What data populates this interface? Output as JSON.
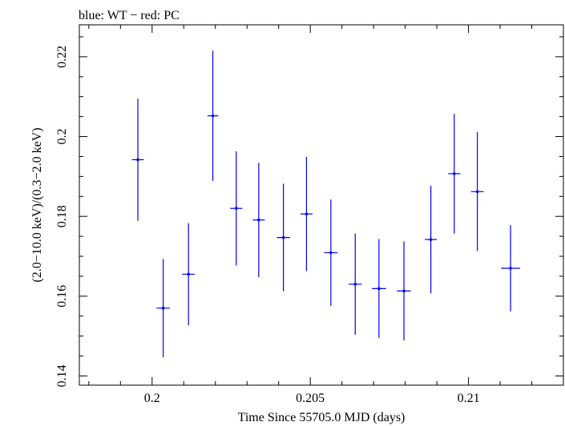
{
  "chart_data": {
    "type": "scatter",
    "title": "blue: WT − red: PC",
    "xlabel": "Time Since 55705.0 MJD (days)",
    "ylabel": "(2.0−10.0 keV)/(0.3−2.0 keV)",
    "xlim": [
      0.1977,
      0.213
    ],
    "ylim": [
      0.1377,
      0.228
    ],
    "xticks": [
      0.2,
      0.205,
      0.21
    ],
    "xtick_labels": [
      "0.2",
      "0.205",
      "0.21"
    ],
    "yticks": [
      0.14,
      0.16,
      0.18,
      0.2,
      0.22
    ],
    "ytick_labels": [
      "0.14",
      "0.16",
      "0.18",
      "0.2",
      "0.22"
    ],
    "grid": false,
    "series": [
      {
        "color": "#0000ee",
        "points": [
          {
            "x": 0.19955,
            "xerr": 0.00019,
            "y": 0.1942,
            "yerr": 0.0153
          },
          {
            "x": 0.20035,
            "xerr": 0.00021,
            "y": 0.157,
            "yerr": 0.0123
          },
          {
            "x": 0.20115,
            "xerr": 0.0002,
            "y": 0.1655,
            "yerr": 0.0128
          },
          {
            "x": 0.20192,
            "xerr": 0.00017,
            "y": 0.2052,
            "yerr": 0.0163
          },
          {
            "x": 0.20266,
            "xerr": 0.00019,
            "y": 0.182,
            "yerr": 0.0143
          },
          {
            "x": 0.20337,
            "xerr": 0.00019,
            "y": 0.1791,
            "yerr": 0.0143
          },
          {
            "x": 0.20415,
            "xerr": 0.00021,
            "y": 0.1747,
            "yerr": 0.0135
          },
          {
            "x": 0.20488,
            "xerr": 0.00019,
            "y": 0.1806,
            "yerr": 0.0143
          },
          {
            "x": 0.20565,
            "xerr": 0.00021,
            "y": 0.1709,
            "yerr": 0.0133
          },
          {
            "x": 0.20642,
            "xerr": 0.00021,
            "y": 0.163,
            "yerr": 0.0127
          },
          {
            "x": 0.20717,
            "xerr": 0.00022,
            "y": 0.1619,
            "yerr": 0.0124
          },
          {
            "x": 0.20796,
            "xerr": 0.00022,
            "y": 0.1613,
            "yerr": 0.0124
          },
          {
            "x": 0.20881,
            "xerr": 0.00019,
            "y": 0.1742,
            "yerr": 0.0135
          },
          {
            "x": 0.20955,
            "xerr": 0.00019,
            "y": 0.1907,
            "yerr": 0.015
          },
          {
            "x": 0.21028,
            "xerr": 0.0002,
            "y": 0.1862,
            "yerr": 0.0149
          },
          {
            "x": 0.21133,
            "xerr": 0.0003,
            "y": 0.167,
            "yerr": 0.0108
          }
        ]
      }
    ]
  }
}
